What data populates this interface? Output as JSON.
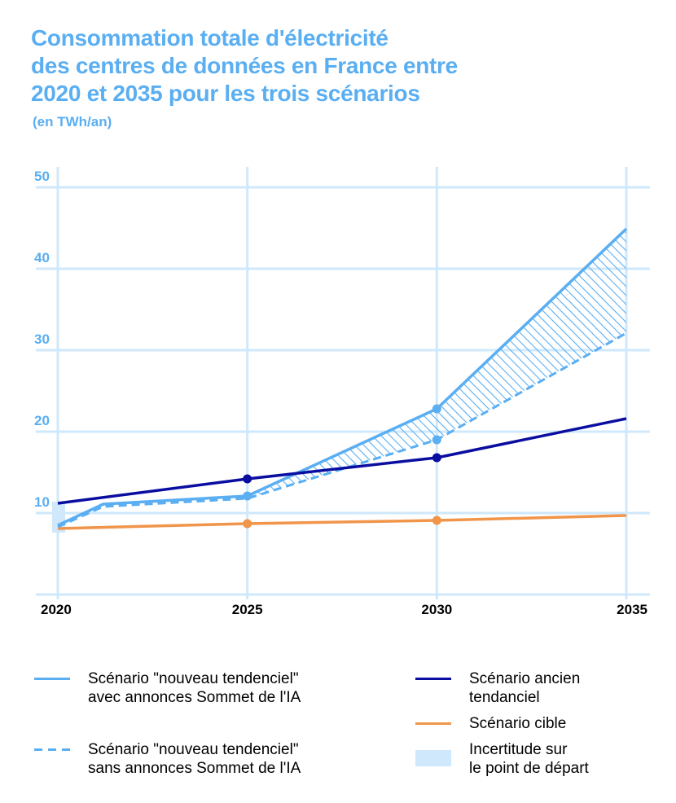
{
  "chart_data": {
    "type": "line",
    "title": [
      "Consommation totale d'électricité",
      "des centres de données en France entre",
      "2020 et 2035 pour les trois scénarios"
    ],
    "subtitle": "(en TWh/an)",
    "xlabel": "",
    "ylabel": "TWh/an",
    "x_ticks": [
      "2020",
      "2025",
      "2030",
      "2035"
    ],
    "y_ticks": [
      "10",
      "20",
      "30",
      "40",
      "50"
    ],
    "xlim": [
      2020,
      2035
    ],
    "ylim": [
      0,
      50
    ],
    "grid": true,
    "legend_position": "bottom",
    "series": [
      {
        "name": "Scénario \"nouveau tendenciel\" avec annonces Sommet de l'IA",
        "style": "solid",
        "color": "#5aaef2",
        "points": [
          [
            2020,
            8.5
          ],
          [
            2021.2,
            11.1
          ],
          [
            2025,
            12.1
          ],
          [
            2030,
            22.8
          ],
          [
            2035,
            44.9
          ]
        ],
        "markers": [
          2025,
          2030
        ]
      },
      {
        "name": "Scénario \"nouveau tendenciel\" sans annonces Sommet de l'IA",
        "style": "dashed",
        "color": "#5aaef2",
        "points": [
          [
            2020,
            8.3
          ],
          [
            2021.2,
            10.8
          ],
          [
            2025,
            11.8
          ],
          [
            2030,
            19.0
          ],
          [
            2035,
            32.1
          ]
        ],
        "markers": [
          2030
        ]
      },
      {
        "name": "Scénario ancien tendanciel",
        "style": "solid",
        "color": "#0a0ea0",
        "points": [
          [
            2020,
            11.2
          ],
          [
            2025,
            14.2
          ],
          [
            2030,
            16.8
          ],
          [
            2035,
            21.6
          ]
        ],
        "markers": [
          2025,
          2030
        ]
      },
      {
        "name": "Scénario cible",
        "style": "solid",
        "color": "#f0954a",
        "points": [
          [
            2020,
            8.1
          ],
          [
            2025,
            8.7
          ],
          [
            2030,
            9.1
          ],
          [
            2035,
            9.7
          ]
        ],
        "markers": [
          2025,
          2030
        ]
      }
    ],
    "hatched_band": {
      "between": [
        "avec annonces",
        "sans annonces"
      ],
      "from_x": 2025,
      "to_x": 2035,
      "color": "#5aaef2"
    },
    "uncertainty_box": {
      "x": 2020,
      "y_range": [
        7.6,
        11.4
      ],
      "color": "#cfe8fb"
    },
    "colors": {
      "grid": "#cfe8fb",
      "title": "#5aaef2",
      "light_blue": "#5aaef2",
      "dark_blue": "#0a0ea0",
      "orange": "#f0954a",
      "uncertainty": "#cfe8fb"
    }
  },
  "legend": [
    {
      "key": "avec",
      "lines": [
        "Scénario \"nouveau tendenciel\"",
        "avec annonces Sommet de l'IA"
      ],
      "swatch": "solid",
      "color": "#5aaef2"
    },
    {
      "key": "sans",
      "lines": [
        "Scénario \"nouveau tendenciel\"",
        "sans annonces Sommet de l'IA"
      ],
      "swatch": "dashed",
      "color": "#5aaef2"
    },
    {
      "key": "ancien",
      "lines": [
        "Scénario ancien",
        "tendanciel"
      ],
      "swatch": "solid",
      "color": "#0a0ea0"
    },
    {
      "key": "cible",
      "lines": [
        "Scénario cible"
      ],
      "swatch": "solid",
      "color": "#f0954a"
    },
    {
      "key": "incertitude",
      "lines": [
        "Incertitude sur",
        "le point de départ"
      ],
      "swatch": "box",
      "color": "#cfe8fb"
    }
  ]
}
